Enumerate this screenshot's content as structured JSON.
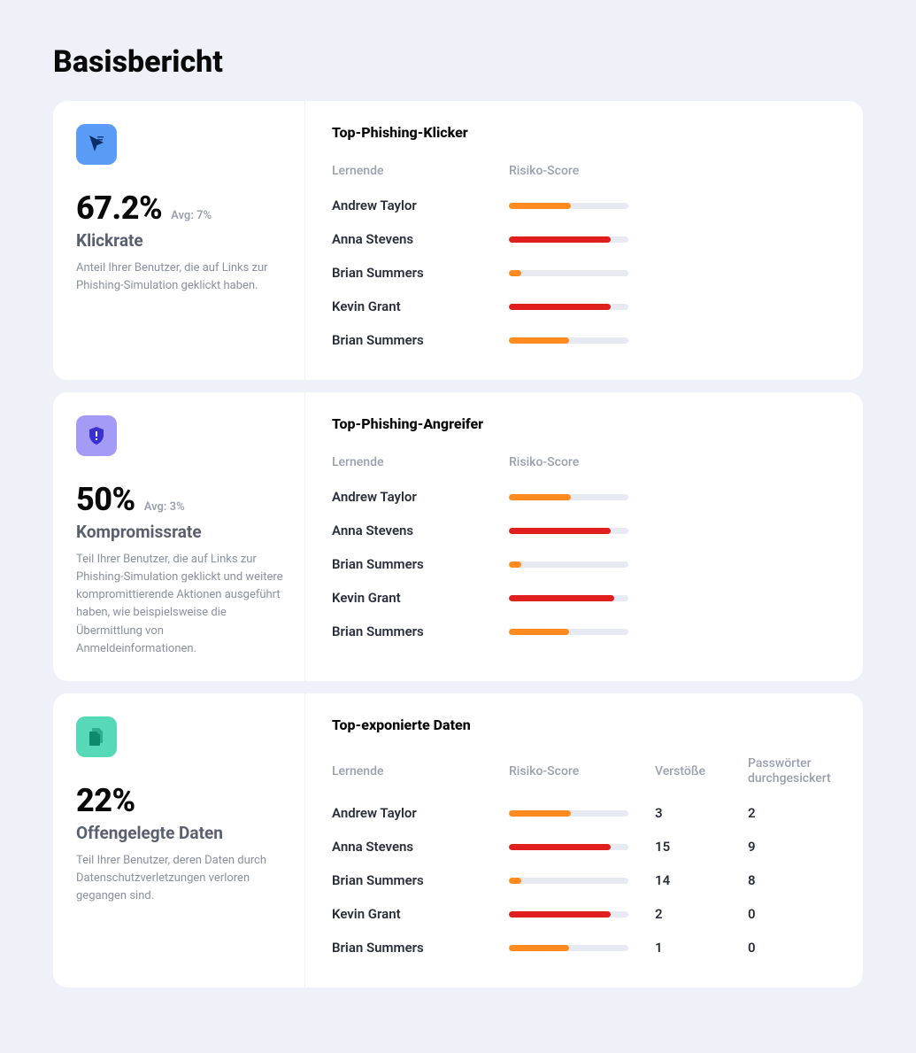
{
  "page": {
    "title": "Basisbericht"
  },
  "colors": {
    "orange": "#ff8a1f",
    "red": "#e01e1e",
    "track": "#e7eaf1",
    "icon_bg_blue": "#5a9bf6",
    "icon_fg_blue": "#0b2e6b",
    "icon_bg_purple": "#a49bf7",
    "icon_fg_purple": "#3a2fd1",
    "icon_bg_teal": "#57d9b7",
    "icon_fg_teal": "#0d8a6a"
  },
  "cards": [
    {
      "id": "click",
      "icon": "cursor",
      "icon_bg_key": "icon_bg_blue",
      "icon_fg_key": "icon_fg_blue",
      "stat": "67.2%",
      "avg": "Avg: 7%",
      "label": "Klickrate",
      "desc": "Anteil Ihrer Benutzer, die auf Links zur Phishing-Simulation geklickt haben.",
      "section_title": "Top-Phishing-Klicker",
      "layout": "cols-2",
      "headers": [
        "Lernende",
        "Risiko-Score"
      ],
      "rows": [
        {
          "name": "Andrew Taylor",
          "score_pct": 52,
          "score_color_key": "orange"
        },
        {
          "name": "Anna Stevens",
          "score_pct": 85,
          "score_color_key": "red"
        },
        {
          "name": "Brian Summers",
          "score_pct": 10,
          "score_color_key": "orange"
        },
        {
          "name": "Kevin Grant",
          "score_pct": 85,
          "score_color_key": "red"
        },
        {
          "name": "Brian Summers",
          "score_pct": 50,
          "score_color_key": "orange"
        }
      ]
    },
    {
      "id": "compromise",
      "icon": "shield",
      "icon_bg_key": "icon_bg_purple",
      "icon_fg_key": "icon_fg_purple",
      "stat": "50%",
      "avg": "Avg: 3%",
      "label": "Kompromissrate",
      "desc": "Teil Ihrer Benutzer, die auf Links zur Phishing-Simulation geklickt und weitere kompromittierende Aktionen ausgeführt haben, wie beispielsweise die Übermittlung von Anmeldeinformationen.",
      "section_title": "Top-Phishing-Angreifer",
      "layout": "cols-2",
      "headers": [
        "Lernende",
        "Risiko-Score"
      ],
      "rows": [
        {
          "name": "Andrew Taylor",
          "score_pct": 52,
          "score_color_key": "orange"
        },
        {
          "name": "Anna Stevens",
          "score_pct": 85,
          "score_color_key": "red"
        },
        {
          "name": "Brian Summers",
          "score_pct": 10,
          "score_color_key": "orange"
        },
        {
          "name": "Kevin Grant",
          "score_pct": 88,
          "score_color_key": "red"
        },
        {
          "name": "Brian Summers",
          "score_pct": 50,
          "score_color_key": "orange"
        }
      ]
    },
    {
      "id": "exposed",
      "icon": "files",
      "icon_bg_key": "icon_bg_teal",
      "icon_fg_key": "icon_fg_teal",
      "stat": "22%",
      "avg": "",
      "label": "Offengelegte Daten",
      "desc": "Teil Ihrer Benutzer, deren Daten durch Datenschutzverletzungen verloren gegangen sind.",
      "section_title": "Top-exponierte Daten",
      "layout": "cols-4",
      "headers": [
        "Lernende",
        "Risiko-Score",
        "Verstöße",
        "Passwörter durchgesickert"
      ],
      "rows": [
        {
          "name": "Andrew Taylor",
          "score_pct": 52,
          "score_color_key": "orange",
          "breaches": "3",
          "passwords": "2"
        },
        {
          "name": "Anna Stevens",
          "score_pct": 85,
          "score_color_key": "red",
          "breaches": "15",
          "passwords": "9"
        },
        {
          "name": "Brian Summers",
          "score_pct": 10,
          "score_color_key": "orange",
          "breaches": "14",
          "passwords": "8"
        },
        {
          "name": "Kevin Grant",
          "score_pct": 85,
          "score_color_key": "red",
          "breaches": "2",
          "passwords": "0"
        },
        {
          "name": "Brian Summers",
          "score_pct": 50,
          "score_color_key": "orange",
          "breaches": "1",
          "passwords": "0"
        }
      ]
    }
  ]
}
